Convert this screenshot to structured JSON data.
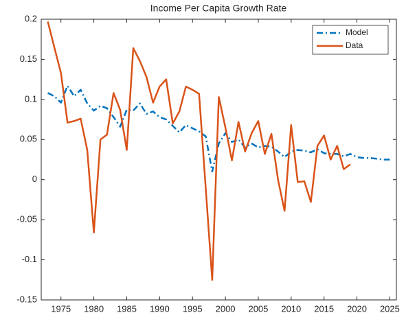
{
  "chart_data": {
    "type": "line",
    "title": "Income Per Capita Growth Rate",
    "x": [
      1973,
      1974,
      1975,
      1976,
      1977,
      1978,
      1979,
      1980,
      1981,
      1982,
      1983,
      1984,
      1985,
      1986,
      1987,
      1988,
      1989,
      1990,
      1991,
      1992,
      1993,
      1994,
      1995,
      1996,
      1997,
      1998,
      1999,
      2000,
      2001,
      2002,
      2003,
      2004,
      2005,
      2006,
      2007,
      2008,
      2009,
      2010,
      2011,
      2012,
      2013,
      2014,
      2015,
      2016,
      2017,
      2018,
      2019,
      2020,
      2021,
      2022,
      2023,
      2024,
      2025
    ],
    "series": [
      {
        "name": "Model",
        "color": "#0072bd",
        "dash": "dashdot",
        "values": [
          0.108,
          0.104,
          0.096,
          0.117,
          0.104,
          0.112,
          0.095,
          0.086,
          0.092,
          0.089,
          0.078,
          0.066,
          0.087,
          0.086,
          0.095,
          0.082,
          0.085,
          0.078,
          0.075,
          0.067,
          0.059,
          0.068,
          0.064,
          0.06,
          0.054,
          0.01,
          0.045,
          0.058,
          0.047,
          0.05,
          0.04,
          0.045,
          0.04,
          0.042,
          0.041,
          0.035,
          0.028,
          0.035,
          0.037,
          0.036,
          0.034,
          0.038,
          0.033,
          0.032,
          0.032,
          0.029,
          0.032,
          0.028,
          0.027,
          0.027,
          0.026,
          0.025,
          0.025
        ]
      },
      {
        "name": "Data",
        "color": "#d95319",
        "dash": "solid",
        "values": [
          0.197,
          0.165,
          0.133,
          0.071,
          0.073,
          0.076,
          0.037,
          -0.066,
          0.05,
          0.056,
          0.108,
          0.087,
          0.037,
          0.164,
          0.148,
          0.128,
          0.096,
          0.116,
          0.125,
          0.07,
          0.085,
          0.116,
          0.112,
          0.107,
          -0.01,
          -0.125,
          0.103,
          0.065,
          0.024,
          0.072,
          0.035,
          0.058,
          0.073,
          0.032,
          0.057,
          0.0,
          -0.039,
          0.068,
          -0.003,
          -0.002,
          -0.028,
          0.042,
          0.055,
          0.025,
          0.042,
          0.013,
          0.019,
          null,
          null,
          null,
          null,
          null,
          null
        ]
      }
    ],
    "xlim": [
      1972,
      2026
    ],
    "xticks": [
      1975,
      1980,
      1985,
      1990,
      1995,
      2000,
      2005,
      2010,
      2015,
      2020,
      2025
    ],
    "ylim": [
      -0.15,
      0.2
    ],
    "yticks": [
      -0.15,
      -0.1,
      -0.05,
      0,
      0.05,
      0.1,
      0.15,
      0.2
    ],
    "legend": "northeast"
  }
}
